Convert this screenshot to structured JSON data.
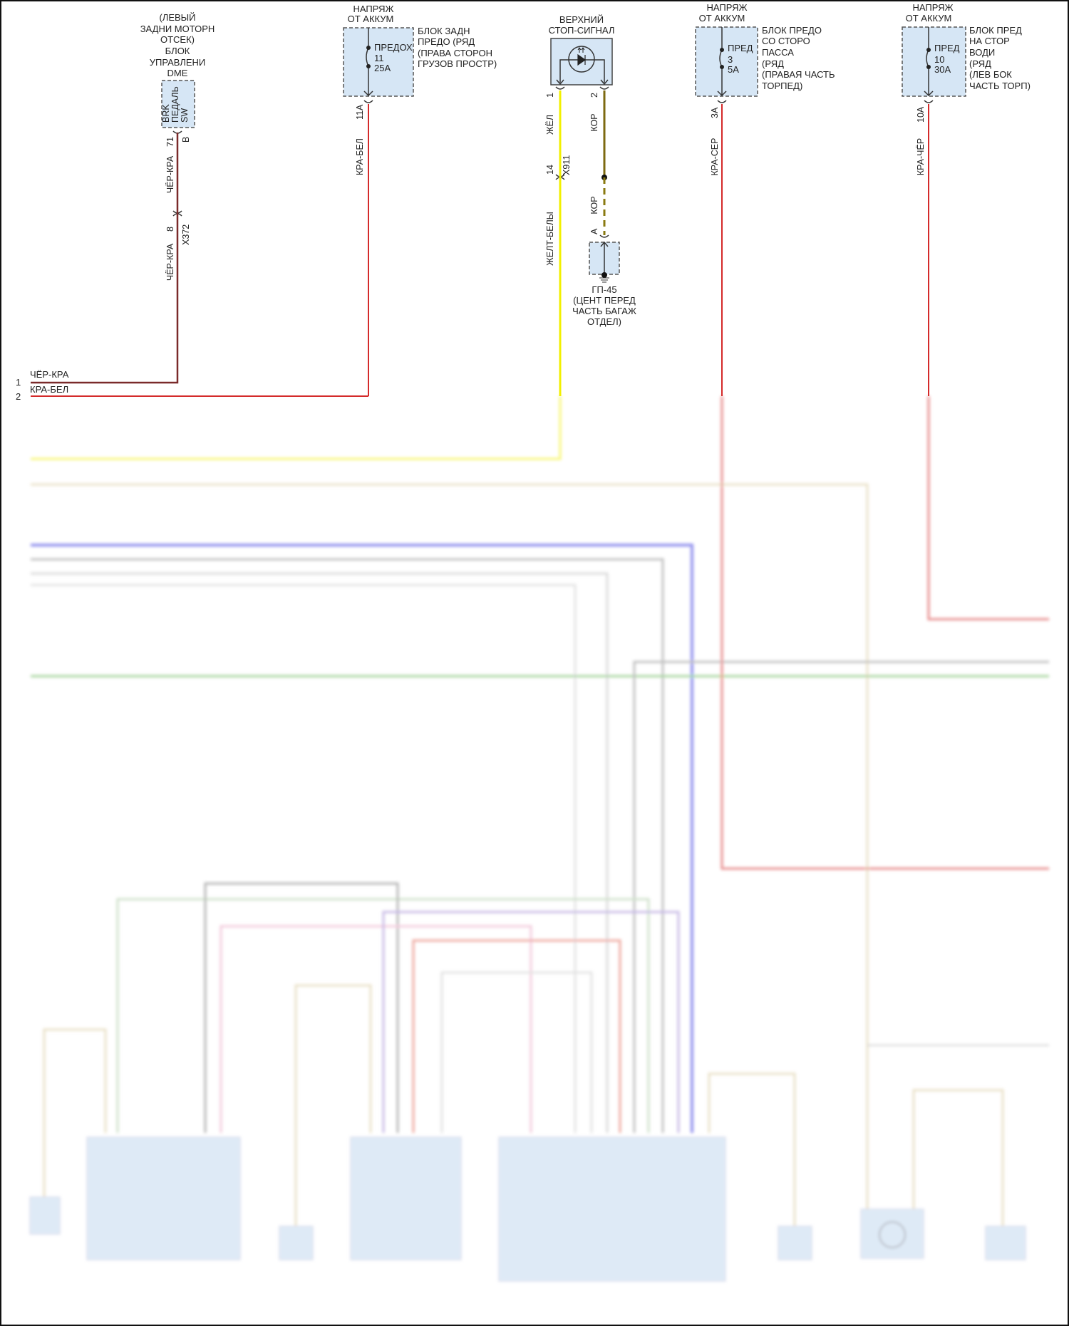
{
  "dme": {
    "location": [
      "(ЛЕВЫЙ",
      "ЗАДНИ МОТОРН",
      "ОТСЕК)",
      "БЛОК",
      "УПРАВЛЕНИ",
      "DME"
    ],
    "pins": [
      "BRK",
      "ПЕДАЛЬ",
      "SW"
    ],
    "pin_no": "71",
    "connector": "B",
    "wire1": "ЧЁР-КРА",
    "x_pin": "8",
    "x_conn": "X372",
    "wire2": "ЧЁР-КРА"
  },
  "fuse1": {
    "supply": [
      "НАПРЯЖ",
      "ОТ АККУМ"
    ],
    "fuse": [
      "ПРЕДОХ",
      "11",
      "25A"
    ],
    "block": [
      "БЛОК ЗАДН",
      "ПРЕДО (РЯД",
      "(ПРАВА СТОРОН",
      "ГРУЗОВ ПРОСТР)"
    ],
    "pin": "11A",
    "wire": "КРА-БЕЛ"
  },
  "stoplamp": {
    "title": [
      "ВЕРХНИЙ",
      "СТОП-СИГНАЛ"
    ],
    "pin1": "1",
    "wire1": "ЖЁЛ",
    "x_pin": "14",
    "x_conn": "X911",
    "wire1b": "ЖЕЛТ-БЕЛЫ",
    "pin2": "2",
    "wire2": "КОР",
    "wire2b": "КОР",
    "ground_pin": "A",
    "ground": [
      "ГП-45",
      "(ЦЕНТ ПЕРЕД",
      "ЧАСТЬ БАГАЖ",
      "ОТДЕЛ)"
    ]
  },
  "fuse2": {
    "supply": [
      "НАПРЯЖ",
      "ОТ АККУМ"
    ],
    "fuse": [
      "ПРЕД",
      "3",
      "5A"
    ],
    "block": [
      "БЛОК ПРЕДО",
      "СО СТОРО",
      "ПАССА",
      "(РЯД",
      "(ПРАВАЯ ЧАСТЬ",
      "ТОРПЕД)"
    ],
    "pin": "3A",
    "wire": "КРА-СЕР"
  },
  "fuse3": {
    "supply": [
      "НАПРЯЖ",
      "ОТ АККУМ"
    ],
    "fuse": [
      "ПРЕД",
      "10",
      "30A"
    ],
    "block": [
      "БЛОК ПРЕД",
      "НА СТОР",
      "ВОДИ",
      "(РЯД",
      "(ЛЕВ БОК",
      "ЧАСТЬ ТОРП)"
    ],
    "pin": "10A",
    "wire": "КРА-ЧЁР"
  },
  "left_bus": {
    "rows": [
      {
        "no": "1",
        "wire": "ЧЁР-КРА"
      },
      {
        "no": "2",
        "wire": "КРА-БЕЛ"
      }
    ]
  },
  "colors": {
    "component_fill": "#d6e6f5",
    "wire_black_red": "#7a2a2a",
    "wire_red": "#d42a2a",
    "wire_yellow": "#f2f000",
    "wire_brown": "#7d6a10",
    "wire_blue": "#3a3ae0",
    "wire_green": "#5bb04a",
    "wire_grey": "#8a8a8a",
    "wire_tan": "#d8c89a"
  }
}
